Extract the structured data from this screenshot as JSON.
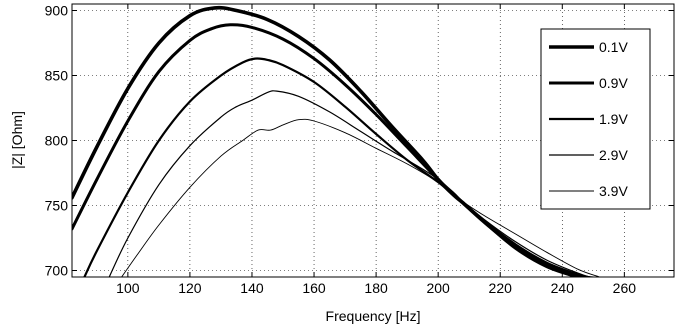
{
  "chart_data": {
    "type": "line",
    "xlabel": "Frequency [Hz]",
    "ylabel": "|Z| [Ohm]",
    "xlim": [
      82,
      276
    ],
    "ylim": [
      695,
      905
    ],
    "xticks": [
      100,
      120,
      140,
      160,
      180,
      200,
      220,
      240,
      260
    ],
    "yticks": [
      700,
      750,
      800,
      850,
      900
    ],
    "xtick_labels": [
      "100",
      "120",
      "140",
      "160",
      "180",
      "200",
      "220",
      "240",
      "260"
    ],
    "ytick_labels": [
      "700",
      "750",
      "800",
      "850",
      "900"
    ],
    "grid": true,
    "legend_position": "top-right",
    "series": [
      {
        "name": "0.1V",
        "line_width": 3.6,
        "x": [
          82,
          90,
          100,
          110,
          120,
          128,
          135,
          145,
          155,
          165,
          175,
          185,
          195,
          200,
          205,
          208,
          215,
          225,
          235,
          245,
          250
        ],
        "y": [
          756,
          795,
          840,
          875,
          896,
          902,
          900,
          893,
          880,
          862,
          838,
          811,
          785,
          770,
          758,
          752,
          737,
          718,
          704,
          696,
          694
        ]
      },
      {
        "name": "0.9V",
        "line_width": 3.0,
        "x": [
          82,
          90,
          100,
          110,
          120,
          127,
          133,
          140,
          150,
          160,
          170,
          180,
          190,
          200,
          205,
          208,
          215,
          225,
          235,
          245,
          250
        ],
        "y": [
          732,
          770,
          815,
          853,
          877,
          886,
          889,
          887,
          878,
          863,
          843,
          820,
          795,
          770,
          759,
          752,
          737,
          717,
          703,
          695,
          693
        ]
      },
      {
        "name": "1.9V",
        "line_width": 2.2,
        "x": [
          86,
          90,
          100,
          110,
          120,
          130,
          137,
          141,
          145,
          150,
          160,
          170,
          180,
          190,
          200,
          205,
          208,
          215,
          225,
          235,
          245,
          250
        ],
        "y": [
          695,
          715,
          760,
          800,
          830,
          850,
          860,
          863,
          862,
          858,
          845,
          826,
          805,
          785,
          768,
          758,
          752,
          738,
          720,
          706,
          697,
          694
        ]
      },
      {
        "name": "2.9V",
        "line_width": 1.2,
        "x": [
          94,
          100,
          110,
          120,
          130,
          135,
          140,
          145,
          148,
          155,
          165,
          175,
          185,
          195,
          200,
          205,
          208,
          215,
          225,
          235,
          245,
          250
        ],
        "y": [
          695,
          725,
          766,
          796,
          818,
          826,
          831,
          837,
          838,
          834,
          822,
          807,
          792,
          778,
          770,
          759,
          753,
          739,
          722,
          708,
          698,
          694
        ]
      },
      {
        "name": "3.9V",
        "line_width": 0.9,
        "x": [
          98,
          103,
          110,
          120,
          130,
          137,
          142,
          146,
          150,
          155,
          160,
          170,
          180,
          190,
          200,
          205,
          208,
          215,
          225,
          235,
          245,
          252
        ],
        "y": [
          695,
          712,
          735,
          764,
          788,
          800,
          808,
          808,
          812,
          816,
          815,
          806,
          794,
          782,
          768,
          760,
          753,
          742,
          728,
          714,
          701,
          695
        ]
      }
    ]
  }
}
